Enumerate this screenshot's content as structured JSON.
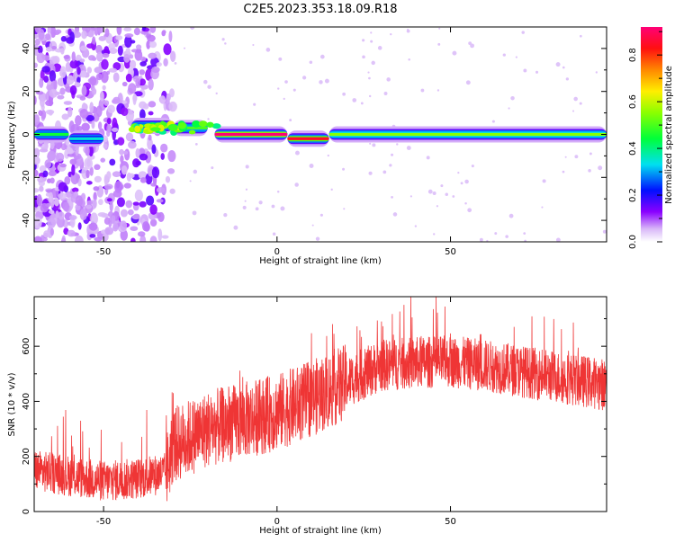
{
  "title": "C2E5.2023.353.18.09.R18",
  "chart_data": [
    {
      "type": "heatmap",
      "xlabel": "Height of straight line (km)",
      "ylabel": "Frequency (Hz)",
      "xlim": [
        -70,
        95
      ],
      "ylim": [
        -50,
        50
      ],
      "xticks": [
        -50,
        0,
        50
      ],
      "yticks": [
        -40,
        -20,
        0,
        20,
        40
      ],
      "colorbar": {
        "label": "Normalized spectral amplitude",
        "range": [
          0,
          0.92
        ],
        "ticks": [
          0.0,
          0.2,
          0.4,
          0.6,
          0.8
        ]
      },
      "band": {
        "segments": [
          {
            "x0": -70,
            "x1": -60,
            "f": 0,
            "amp": 0.45
          },
          {
            "x0": -60,
            "x1": -50,
            "f": -2,
            "amp": 0.35
          },
          {
            "x0": -42,
            "x1": -30,
            "f": 4,
            "amp": 0.45
          },
          {
            "x0": -30,
            "x1": -20,
            "f": 3,
            "amp": 0.5
          },
          {
            "x0": -18,
            "x1": 3,
            "f": 0,
            "amp": 0.92
          },
          {
            "x0": 3,
            "x1": 15,
            "f": -2,
            "amp": 0.85
          },
          {
            "x0": 15,
            "x1": 95,
            "f": 0,
            "amp": 0.55
          }
        ]
      },
      "noise": {
        "x0": -70,
        "x1": -30,
        "amp": 0.15
      }
    },
    {
      "type": "line",
      "xlabel": "Height of straight line (km)",
      "ylabel": "SNR (10 * v/v)",
      "xlim": [
        -70,
        95
      ],
      "ylim": [
        0,
        780
      ],
      "xticks": [
        -50,
        0,
        50
      ],
      "yticks": [
        0,
        200,
        400,
        600
      ],
      "color": "#ef3535",
      "trend": {
        "x": [
          -70,
          -60,
          -50,
          -40,
          -32,
          -30,
          -20,
          -10,
          0,
          10,
          20,
          30,
          40,
          50,
          60,
          70,
          80,
          90,
          95
        ],
        "y": [
          150,
          130,
          110,
          120,
          140,
          240,
          300,
          330,
          360,
          410,
          470,
          530,
          540,
          545,
          530,
          510,
          490,
          470,
          460
        ]
      }
    }
  ]
}
